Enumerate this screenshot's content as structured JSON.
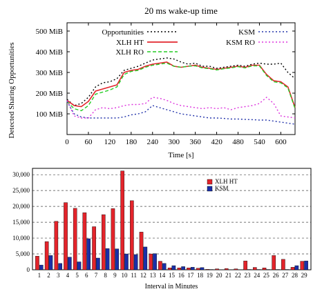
{
  "chart_data": [
    {
      "type": "line",
      "title": "20 ms wake-up time",
      "xlabel": "Time [s]",
      "ylabel": "Detected Sharing Opportunities",
      "xlim": [
        0,
        640
      ],
      "ylim": [
        0,
        540
      ],
      "xticks": [
        "0",
        "60",
        "120",
        "180",
        "240",
        "300",
        "360",
        "420",
        "480",
        "540",
        "600"
      ],
      "xtick_values": [
        0,
        60,
        120,
        180,
        240,
        300,
        360,
        420,
        480,
        540,
        600
      ],
      "yticks": [
        "100 MiB",
        "200 MiB",
        "300 MiB",
        "400 MiB",
        "500 MiB"
      ],
      "ytick_values": [
        100,
        200,
        300,
        400,
        500
      ],
      "legend_position": "top",
      "series": [
        {
          "name": "Opportunities",
          "color": "#000000",
          "style": "dotted",
          "x": [
            0,
            20,
            40,
            60,
            80,
            100,
            120,
            140,
            160,
            180,
            200,
            220,
            240,
            260,
            280,
            300,
            320,
            340,
            360,
            380,
            400,
            420,
            440,
            460,
            480,
            500,
            520,
            540,
            560,
            580,
            600,
            620,
            640
          ],
          "y": [
            170,
            140,
            150,
            180,
            230,
            250,
            255,
            270,
            310,
            320,
            330,
            345,
            360,
            365,
            370,
            365,
            350,
            340,
            345,
            330,
            330,
            320,
            325,
            330,
            335,
            330,
            340,
            345,
            340,
            340,
            345,
            300,
            270
          ]
        },
        {
          "name": "XLH HT",
          "color": "#e3242b",
          "style": "solid",
          "x": [
            0,
            20,
            40,
            60,
            80,
            100,
            120,
            140,
            160,
            180,
            200,
            220,
            240,
            260,
            280,
            300,
            320,
            340,
            360,
            380,
            400,
            420,
            440,
            460,
            480,
            500,
            520,
            540,
            560,
            580,
            600,
            620,
            640
          ],
          "y": [
            165,
            140,
            135,
            160,
            210,
            220,
            230,
            240,
            300,
            310,
            315,
            330,
            340,
            345,
            350,
            330,
            325,
            330,
            335,
            325,
            320,
            315,
            320,
            325,
            330,
            325,
            335,
            335,
            290,
            260,
            255,
            230,
            130
          ]
        },
        {
          "name": "XLH RO",
          "color": "#22cc22",
          "style": "dashed",
          "x": [
            0,
            20,
            40,
            60,
            80,
            100,
            120,
            140,
            160,
            180,
            200,
            220,
            240,
            260,
            280,
            300,
            320,
            340,
            360,
            380,
            400,
            420,
            440,
            460,
            480,
            500,
            520,
            540,
            560,
            580,
            600,
            620,
            640
          ],
          "y": [
            160,
            125,
            115,
            140,
            195,
            205,
            215,
            230,
            290,
            305,
            310,
            325,
            335,
            340,
            345,
            330,
            325,
            330,
            332,
            322,
            318,
            312,
            318,
            322,
            328,
            322,
            332,
            332,
            285,
            255,
            250,
            225,
            125
          ]
        },
        {
          "name": "KSM",
          "color": "#2233aa",
          "style": "dotted",
          "x": [
            0,
            20,
            40,
            60,
            80,
            100,
            120,
            140,
            160,
            180,
            200,
            220,
            240,
            260,
            280,
            300,
            320,
            340,
            360,
            380,
            400,
            420,
            440,
            460,
            480,
            500,
            520,
            540,
            560,
            580,
            600,
            620,
            640
          ],
          "y": [
            160,
            100,
            85,
            80,
            80,
            80,
            80,
            80,
            85,
            95,
            100,
            110,
            140,
            130,
            120,
            110,
            100,
            95,
            90,
            85,
            80,
            80,
            78,
            75,
            75,
            73,
            72,
            70,
            70,
            65,
            60,
            55,
            50
          ]
        },
        {
          "name": "KSM RO",
          "color": "#dd33dd",
          "style": "dotted",
          "x": [
            0,
            20,
            40,
            60,
            80,
            100,
            120,
            140,
            160,
            180,
            200,
            220,
            240,
            260,
            280,
            300,
            320,
            340,
            360,
            380,
            400,
            420,
            440,
            460,
            480,
            500,
            520,
            540,
            560,
            580,
            600,
            620,
            640
          ],
          "y": [
            165,
            90,
            80,
            80,
            120,
            130,
            125,
            130,
            140,
            145,
            145,
            150,
            180,
            175,
            165,
            150,
            140,
            135,
            130,
            125,
            130,
            125,
            130,
            120,
            130,
            135,
            140,
            150,
            180,
            150,
            90,
            85,
            80
          ]
        }
      ]
    },
    {
      "type": "bar",
      "xlabel": "Interval in Minutes",
      "ylim": [
        0,
        32000
      ],
      "yticks": [
        "0",
        "5,000",
        "10,000",
        "15,000",
        "20,000",
        "25,000",
        "30,000"
      ],
      "ytick_values": [
        0,
        5000,
        10000,
        15000,
        20000,
        25000,
        30000
      ],
      "categories": [
        "1",
        "2",
        "3",
        "4",
        "5",
        "6",
        "7",
        "8",
        "9",
        "10",
        "11",
        "12",
        "13",
        "14",
        "15",
        "16",
        "17",
        "18",
        "19",
        "20",
        "21",
        "22",
        "23",
        "24",
        "25",
        "26",
        "27",
        "28",
        "29"
      ],
      "grid": "horizontal dashed",
      "legend_position": "top-right",
      "series": [
        {
          "name": "XLH HT",
          "color": "#e3242b",
          "values": [
            4300,
            8900,
            15300,
            21200,
            19400,
            18000,
            13600,
            17400,
            19300,
            31200,
            21800,
            11900,
            5000,
            2700,
            600,
            600,
            600,
            500,
            150,
            300,
            400,
            300,
            2800,
            750,
            600,
            4500,
            3300,
            800,
            2700
          ]
        },
        {
          "name": "KSM",
          "color": "#1a2fa8",
          "values": [
            1500,
            4500,
            2000,
            4000,
            2500,
            9800,
            3700,
            6700,
            6600,
            5000,
            4800,
            7200,
            5100,
            2000,
            1300,
            1000,
            800,
            700,
            100,
            50,
            50,
            50,
            100,
            100,
            100,
            100,
            100,
            1300,
            2800
          ]
        }
      ]
    }
  ]
}
